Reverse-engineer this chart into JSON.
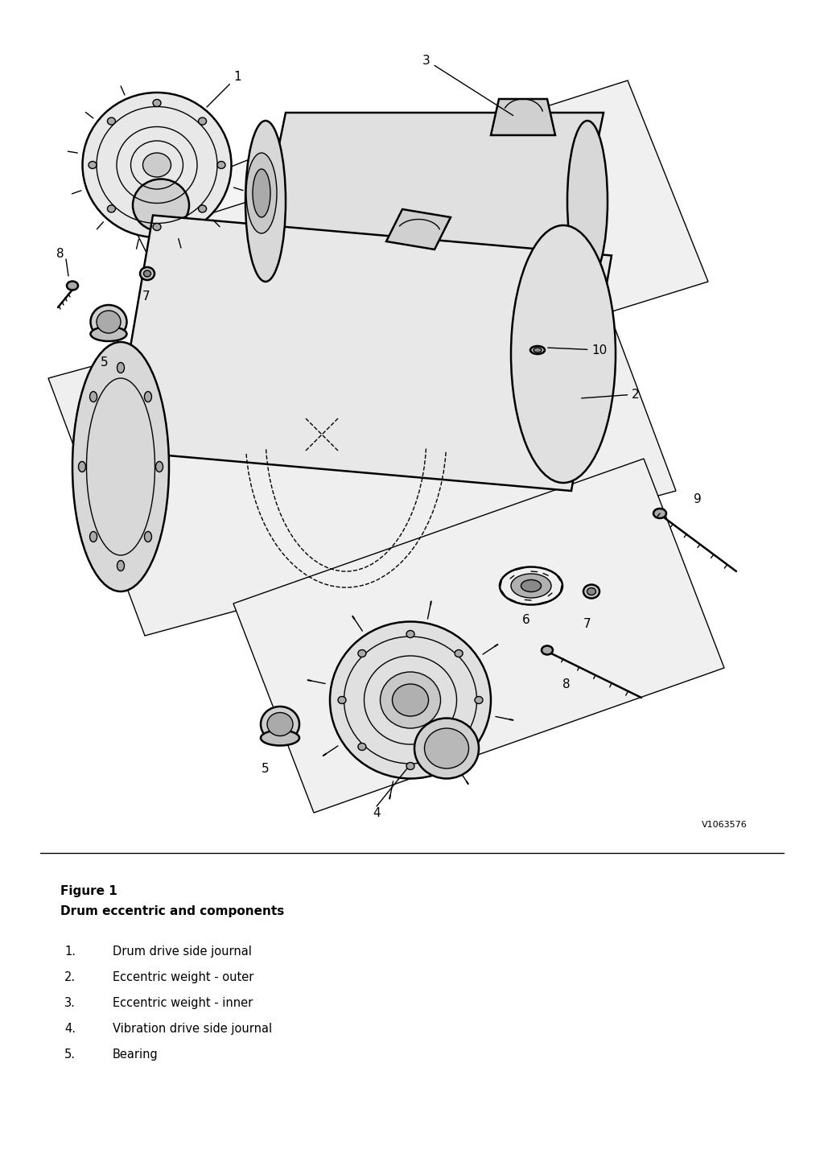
{
  "figure_title": "Figure 1",
  "figure_subtitle": "Drum eccentric and components",
  "part_number": "V1063576",
  "legend_items": [
    {
      "number": "1.",
      "text": "Drum drive side journal"
    },
    {
      "number": "2.",
      "text": "Eccentric weight - outer"
    },
    {
      "number": "3.",
      "text": "Eccentric weight - inner"
    },
    {
      "number": "4.",
      "text": "Vibration drive side journal"
    },
    {
      "number": "5.",
      "text": "Bearing"
    }
  ],
  "bg_color": "#ffffff",
  "line_color": "#000000",
  "text_color": "#000000",
  "label_fontsize": 11,
  "title_fontsize": 11,
  "subtitle_fontsize": 11,
  "legend_fontsize": 10.5,
  "part_num_fontsize": 8
}
